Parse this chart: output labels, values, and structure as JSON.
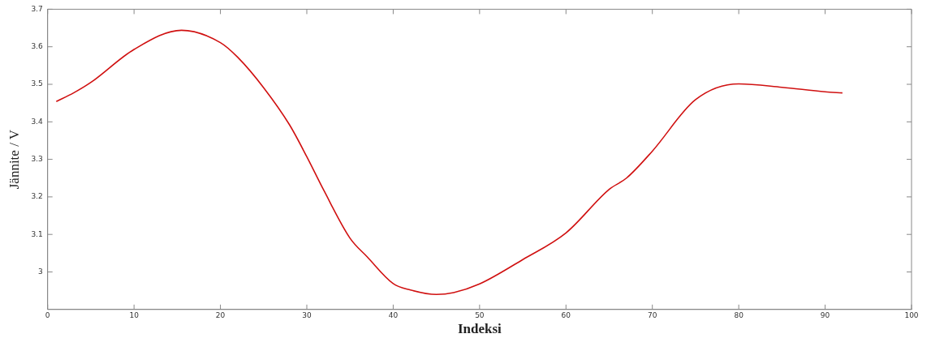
{
  "chart_data": {
    "type": "line",
    "xlabel": "Indeksi",
    "ylabel": "Jännite / V",
    "x": [
      1,
      3,
      5,
      10,
      15.5,
      20,
      22,
      25,
      28,
      30,
      32,
      35,
      37,
      40,
      42,
      45,
      47,
      50,
      55,
      60,
      65,
      67,
      70,
      75,
      80,
      85,
      90,
      92
    ],
    "series": [
      {
        "color": "#d01010",
        "values": [
          3.454,
          3.477,
          3.505,
          3.593,
          3.644,
          3.611,
          3.572,
          3.491,
          3.392,
          3.307,
          3.216,
          3.09,
          3.04,
          2.969,
          2.952,
          2.94,
          2.945,
          2.968,
          3.033,
          3.104,
          3.22,
          3.25,
          3.322,
          3.459,
          3.501,
          3.492,
          3.48,
          3.477
        ]
      }
    ],
    "xlim": [
      0,
      100
    ],
    "xticks": [
      0,
      10,
      20,
      30,
      40,
      50,
      60,
      70,
      80,
      90,
      100
    ],
    "ylim": [
      2.9,
      3.7
    ],
    "yticks": [
      3,
      3.1,
      3.2,
      3.3,
      3.4,
      3.5,
      3.6,
      3.7
    ],
    "grid": false,
    "legend": false,
    "marker": "none",
    "line_style": "solid"
  }
}
